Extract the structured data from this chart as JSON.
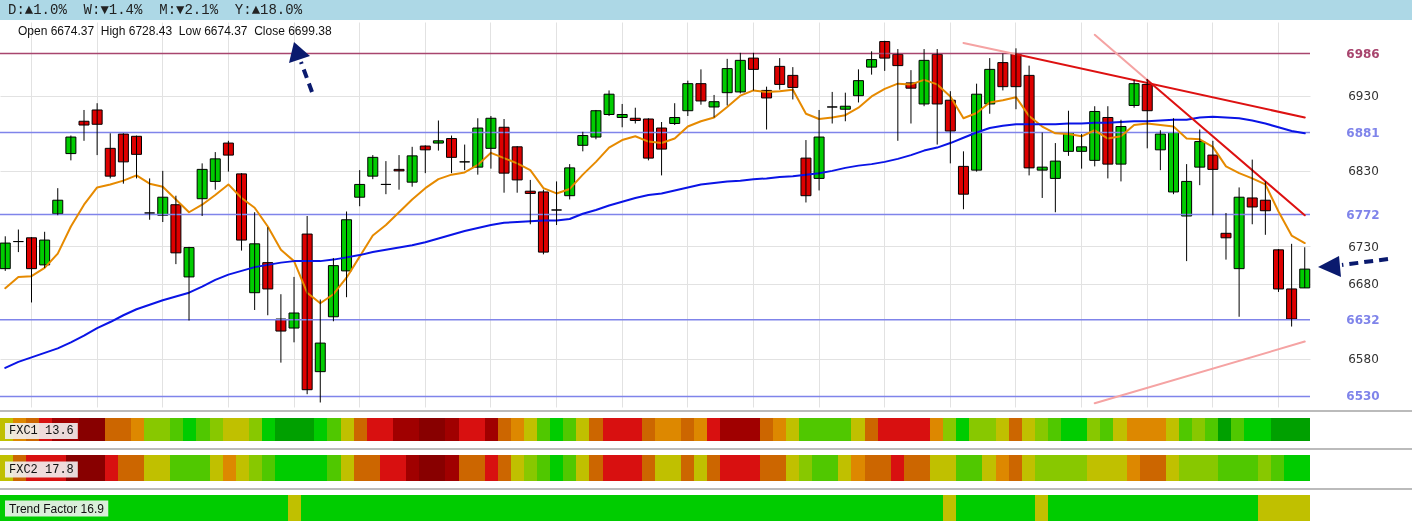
{
  "chart_data": {
    "type": "candlestick",
    "title": "D:▲1.0%  W:▼1.4%  M:▼2.1%  Y:▲18.0%",
    "subtitle": "Open 6674.37  High 6728.43  Low 6674.37  Close 6699.38",
    "annotations": [
      "FXC1 13.6",
      "FXC2 17.8",
      "Trend Factor 16.9"
    ],
    "categories": [
      null,
      null,
      null,
      null,
      null,
      null,
      null,
      null,
      null,
      null,
      null,
      null,
      null,
      null,
      null,
      null,
      null,
      null,
      null,
      null,
      null,
      null,
      null,
      null,
      null,
      null,
      null,
      null,
      null,
      null,
      null,
      null,
      null,
      null,
      null,
      null,
      null,
      null,
      null,
      null,
      null,
      null,
      null,
      null,
      null,
      null,
      null,
      null,
      null,
      null,
      null,
      null,
      null,
      null,
      null,
      null,
      null,
      null,
      null,
      null,
      null,
      null,
      null,
      null,
      null,
      null,
      null,
      null,
      null,
      null,
      null,
      null,
      null,
      null,
      null,
      null,
      null,
      null,
      null,
      null,
      null,
      null,
      null,
      null,
      null,
      null,
      null,
      null,
      null,
      null,
      null,
      null,
      null,
      null,
      null,
      null,
      null,
      null,
      null,
      null
    ],
    "ohlc": [
      [
        6700,
        6743,
        6697,
        6734
      ],
      [
        6736,
        6752,
        6722,
        6736
      ],
      [
        6741,
        6742,
        6655,
        6700
      ],
      [
        6705,
        6749,
        6701,
        6738
      ],
      [
        6773,
        6807,
        6771,
        6791
      ],
      [
        6853,
        6877,
        6844,
        6875
      ],
      [
        6896,
        6911,
        6870,
        6891
      ],
      [
        6911,
        6920,
        6851,
        6892
      ],
      [
        6860,
        6880,
        6820,
        6823
      ],
      [
        6879,
        6880,
        6813,
        6842
      ],
      [
        6876,
        6877,
        6820,
        6852
      ],
      [
        6774,
        6820,
        6765,
        6774
      ],
      [
        6771,
        6830,
        6762,
        6795
      ],
      [
        6785,
        6797,
        6706,
        6721
      ],
      [
        6689,
        6729,
        6631,
        6728
      ],
      [
        6793,
        6840,
        6770,
        6832
      ],
      [
        6816,
        6855,
        6805,
        6846
      ],
      [
        6867,
        6870,
        6829,
        6851
      ],
      [
        6826,
        6827,
        6724,
        6738
      ],
      [
        6668,
        6775,
        6645,
        6733
      ],
      [
        6708,
        6755,
        6638,
        6673
      ],
      [
        6633,
        6666,
        6575,
        6617
      ],
      [
        6621,
        6689,
        6602,
        6641
      ],
      [
        6746,
        6770,
        6533,
        6539
      ],
      [
        6563,
        6659,
        6522,
        6601
      ],
      [
        6636,
        6714,
        6630,
        6704
      ],
      [
        6697,
        6776,
        6662,
        6765
      ],
      [
        6795,
        6831,
        6783,
        6812
      ],
      [
        6823,
        6851,
        6819,
        6848
      ],
      [
        6812,
        6843,
        6799,
        6812
      ],
      [
        6832,
        6851,
        6805,
        6830
      ],
      [
        6815,
        6862,
        6809,
        6850
      ],
      [
        6863,
        6864,
        6827,
        6858
      ],
      [
        6867,
        6897,
        6857,
        6870
      ],
      [
        6873,
        6877,
        6827,
        6848
      ],
      [
        6842,
        6865,
        6831,
        6842
      ],
      [
        6835,
        6900,
        6825,
        6887
      ],
      [
        6860,
        6903,
        6833,
        6900
      ],
      [
        6888,
        6899,
        6801,
        6827
      ],
      [
        6862,
        6863,
        6801,
        6818
      ],
      [
        6803,
        6818,
        6759,
        6800
      ],
      [
        6802,
        6805,
        6719,
        6722
      ],
      [
        6778,
        6816,
        6758,
        6778
      ],
      [
        6797,
        6839,
        6792,
        6834
      ],
      [
        6864,
        6882,
        6856,
        6877
      ],
      [
        6875,
        6911,
        6872,
        6910
      ],
      [
        6905,
        6937,
        6903,
        6932
      ],
      [
        6901,
        6919,
        6888,
        6905
      ],
      [
        6900,
        6914,
        6893,
        6897
      ],
      [
        6899,
        6900,
        6844,
        6847
      ],
      [
        6887,
        6895,
        6824,
        6859
      ],
      [
        6893,
        6920,
        6891,
        6901
      ],
      [
        6910,
        6950,
        6903,
        6946
      ],
      [
        6946,
        6965,
        6918,
        6923
      ],
      [
        6915,
        6931,
        6901,
        6922
      ],
      [
        6934,
        6979,
        6917,
        6966
      ],
      [
        6935,
        6987,
        6933,
        6977
      ],
      [
        6980,
        6987,
        6937,
        6965
      ],
      [
        6937,
        6942,
        6885,
        6927
      ],
      [
        6969,
        6980,
        6938,
        6945
      ],
      [
        6957,
        6968,
        6925,
        6941
      ],
      [
        6847,
        6871,
        6788,
        6797
      ],
      [
        6820,
        6911,
        6804,
        6875
      ],
      [
        6915,
        6935,
        6893,
        6915
      ],
      [
        6912,
        6934,
        6896,
        6916
      ],
      [
        6930,
        6965,
        6921,
        6950
      ],
      [
        6968,
        6989,
        6958,
        6978
      ],
      [
        7002,
        7003,
        6963,
        6980
      ],
      [
        6985,
        6992,
        6870,
        6970
      ],
      [
        6947,
        6964,
        6893,
        6940
      ],
      [
        6919,
        6992,
        6916,
        6977
      ],
      [
        6985,
        6992,
        6865,
        6919
      ],
      [
        6924,
        6936,
        6840,
        6883
      ],
      [
        6836,
        6856,
        6779,
        6799
      ],
      [
        6831,
        6946,
        6829,
        6932
      ],
      [
        6919,
        6980,
        6906,
        6965
      ],
      [
        6974,
        6986,
        6937,
        6942
      ],
      [
        6986,
        6993,
        6912,
        6942
      ],
      [
        6957,
        6970,
        6824,
        6834
      ],
      [
        6831,
        6881,
        6794,
        6835
      ],
      [
        6820,
        6867,
        6775,
        6843
      ],
      [
        6856,
        6910,
        6850,
        6881
      ],
      [
        6856,
        6879,
        6833,
        6862
      ],
      [
        6844,
        6916,
        6836,
        6909
      ],
      [
        6901,
        6916,
        6820,
        6839
      ],
      [
        6839,
        6898,
        6816,
        6889
      ],
      [
        6917,
        6951,
        6914,
        6946
      ],
      [
        6945,
        6952,
        6860,
        6910
      ],
      [
        6858,
        6884,
        6831,
        6879
      ],
      [
        6802,
        6900,
        6799,
        6881
      ],
      [
        6770,
        6839,
        6710,
        6816
      ],
      [
        6835,
        6885,
        6811,
        6869
      ],
      [
        6851,
        6870,
        6771,
        6832
      ],
      [
        6747,
        6774,
        6712,
        6741
      ],
      [
        6700,
        6808,
        6636,
        6795
      ],
      [
        6794,
        6845,
        6759,
        6782
      ],
      [
        6791,
        6816,
        6745,
        6777
      ],
      [
        6725,
        6726,
        6669,
        6673
      ],
      [
        6673,
        6733,
        6623,
        6633
      ],
      [
        6674.37,
        6728.43,
        6674.37,
        6699.38
      ]
    ],
    "series": [
      {
        "type": "line",
        "color": "#e68a00",
        "values": [
          6674,
          6689,
          6690,
          6701,
          6720,
          6756,
          6785,
          6808,
          6812,
          6817,
          6824,
          6813,
          6809,
          6792,
          6775,
          6785,
          6798,
          6812,
          6794,
          6781,
          6756,
          6725,
          6710,
          6668,
          6654,
          6666,
          6688,
          6716,
          6744,
          6758,
          6775,
          6792,
          6807,
          6819,
          6825,
          6828,
          6838,
          6854,
          6847,
          6840,
          6831,
          6807,
          6800,
          6806,
          6825,
          6842,
          6861,
          6871,
          6876,
          6869,
          6867,
          6873,
          6889,
          6896,
          6901,
          6915,
          6930,
          6937,
          6935,
          6936,
          6938,
          6906,
          6899,
          6901,
          6904,
          6914,
          6929,
          6939,
          6946,
          6945,
          6951,
          6945,
          6929,
          6900,
          6907,
          6921,
          6924,
          6928,
          6903,
          6889,
          6880,
          6879,
          6876,
          6884,
          6873,
          6876,
          6891,
          6893,
          6891,
          6889,
          6873,
          6872,
          6862,
          6836,
          6827,
          6820,
          6812,
          6776,
          6744,
          6734
        ]
      },
      {
        "type": "line",
        "color": "#0a14e6",
        "values": [
          6568,
          6576,
          6582,
          6588,
          6594,
          6602,
          6611,
          6621,
          6629,
          6638,
          6646,
          6652,
          6658,
          6663,
          6668,
          6676,
          6685,
          6692,
          6697,
          6702,
          6705,
          6708,
          6710,
          6710,
          6710,
          6712,
          6715,
          6718,
          6722,
          6725,
          6728,
          6731,
          6735,
          6740,
          6745,
          6750,
          6754,
          6758,
          6761,
          6762,
          6763,
          6764,
          6764,
          6766,
          6773,
          6778,
          6784,
          6789,
          6794,
          6798,
          6800,
          6804,
          6808,
          6812,
          6814,
          6816,
          6817,
          6819,
          6820,
          6822,
          6823,
          6825,
          6827,
          6830,
          6834,
          6837,
          6839,
          6842,
          6846,
          6851,
          6857,
          6861,
          6867,
          6874,
          6881,
          6887,
          6890,
          6892,
          6892,
          6892,
          6892,
          6893,
          6893,
          6894,
          6894,
          6895,
          6896,
          6896,
          6897,
          6898,
          6898,
          6901,
          6902,
          6901,
          6900,
          6897,
          6893,
          6888,
          6883,
          6880
        ]
      },
      {
        "type": "line",
        "color": "#f5a3a3",
        "values": [
          null,
          null,
          null,
          null,
          null,
          null,
          null,
          null,
          null,
          null,
          null,
          null,
          null,
          null,
          null,
          null,
          null,
          null,
          null,
          null,
          null,
          null,
          null,
          null,
          null,
          null,
          null,
          null,
          null,
          null,
          null,
          null,
          null,
          null,
          null,
          null,
          null,
          null,
          null,
          null,
          null,
          null,
          null,
          null,
          null,
          null,
          null,
          null,
          null,
          null,
          null,
          null,
          null,
          null,
          null,
          null,
          null,
          null,
          null,
          null,
          null,
          null,
          null,
          null,
          null,
          null,
          null,
          null,
          null,
          null,
          null,
          null,
          null,
          7000,
          null,
          null,
          null,
          6985,
          null,
          null,
          null,
          null,
          null,
          null,
          null,
          null,
          null,
          null,
          null,
          null,
          null,
          null,
          null,
          null,
          null,
          null,
          null,
          null,
          null,
          null
        ]
      },
      {
        "type": "line",
        "color": "#f5a3a3",
        "values": [
          null,
          null,
          null,
          null,
          null,
          null,
          null,
          null,
          null,
          null,
          null,
          null,
          null,
          null,
          null,
          null,
          null,
          null,
          null,
          null,
          null,
          null,
          null,
          null,
          null,
          null,
          null,
          null,
          null,
          null,
          null,
          null,
          null,
          null,
          null,
          null,
          null,
          null,
          null,
          null,
          null,
          null,
          null,
          null,
          null,
          null,
          null,
          null,
          null,
          null,
          null,
          null,
          null,
          null,
          null,
          null,
          null,
          null,
          null,
          null,
          null,
          null,
          null,
          null,
          null,
          null,
          null,
          null,
          null,
          null,
          null,
          null,
          null,
          null,
          null,
          null,
          null,
          null,
          null,
          null,
          null,
          null,
          null,
          7011,
          null,
          null,
          null,
          6951,
          null,
          null,
          null,
          null,
          null,
          null,
          null,
          null,
          null,
          null,
          null,
          null
        ]
      },
      {
        "type": "line",
        "color": "#f5a3a3",
        "values": [
          null,
          null,
          null,
          null,
          null,
          null,
          null,
          null,
          null,
          null,
          null,
          null,
          null,
          null,
          null,
          null,
          null,
          null,
          null,
          null,
          null,
          null,
          null,
          null,
          null,
          null,
          null,
          null,
          null,
          null,
          null,
          null,
          null,
          null,
          null,
          null,
          null,
          null,
          null,
          null,
          null,
          null,
          null,
          null,
          null,
          null,
          null,
          null,
          null,
          null,
          null,
          null,
          null,
          null,
          null,
          null,
          null,
          null,
          null,
          null,
          null,
          null,
          null,
          null,
          null,
          null,
          null,
          null,
          null,
          null,
          null,
          null,
          null,
          null,
          null,
          null,
          null,
          null,
          null,
          null,
          null,
          null,
          null,
          6521,
          null,
          null,
          null,
          null,
          null,
          null,
          null,
          null,
          null,
          null,
          null,
          null,
          null,
          null,
          null,
          6603
        ]
      },
      {
        "type": "line",
        "color": "#dd1111",
        "values": [
          null,
          null,
          null,
          null,
          null,
          null,
          null,
          null,
          null,
          null,
          null,
          null,
          null,
          null,
          null,
          null,
          null,
          null,
          null,
          null,
          null,
          null,
          null,
          null,
          null,
          null,
          null,
          null,
          null,
          null,
          null,
          null,
          null,
          null,
          null,
          null,
          null,
          null,
          null,
          null,
          null,
          null,
          null,
          null,
          null,
          null,
          null,
          null,
          null,
          null,
          null,
          null,
          null,
          null,
          null,
          null,
          null,
          null,
          null,
          null,
          null,
          null,
          null,
          null,
          null,
          null,
          null,
          null,
          null,
          null,
          null,
          null,
          null,
          null,
          null,
          null,
          null,
          6985,
          null,
          null,
          null,
          null,
          null,
          null,
          null,
          null,
          null,
          null,
          null,
          null,
          null,
          null,
          null,
          null,
          null,
          null,
          null,
          null,
          null,
          6901
        ]
      },
      {
        "type": "line",
        "color": "#dd1111",
        "values": [
          null,
          null,
          null,
          null,
          null,
          null,
          null,
          null,
          null,
          null,
          null,
          null,
          null,
          null,
          null,
          null,
          null,
          null,
          null,
          null,
          null,
          null,
          null,
          null,
          null,
          null,
          null,
          null,
          null,
          null,
          null,
          null,
          null,
          null,
          null,
          null,
          null,
          null,
          null,
          null,
          null,
          null,
          null,
          null,
          null,
          null,
          null,
          null,
          null,
          null,
          null,
          null,
          null,
          null,
          null,
          null,
          null,
          null,
          null,
          null,
          null,
          null,
          null,
          null,
          null,
          null,
          null,
          null,
          null,
          null,
          null,
          null,
          null,
          null,
          null,
          null,
          null,
          null,
          null,
          null,
          null,
          null,
          null,
          null,
          null,
          null,
          null,
          6951,
          null,
          null,
          null,
          null,
          null,
          null,
          null,
          null,
          null,
          null,
          null,
          6771
        ]
      }
    ],
    "ref_lines": [
      {
        "axis": "y",
        "value": 6986,
        "label": "6986",
        "color": "#a8456e"
      },
      {
        "axis": "y",
        "value": 6881,
        "label": "6881",
        "color": "#7f84ea"
      },
      {
        "axis": "y",
        "value": 6772,
        "label": "6772",
        "color": "#7f84ea"
      },
      {
        "axis": "y",
        "value": 6632,
        "label": "6632",
        "color": "#7f84ea"
      },
      {
        "axis": "y",
        "value": 6530,
        "label": "6530",
        "color": "#7f84ea"
      }
    ],
    "ylim": [
      6516,
      7028
    ],
    "yticks": [
      6580,
      6680,
      6730,
      6830,
      6930
    ],
    "grid": true,
    "tick_labels": "y"
  }
}
